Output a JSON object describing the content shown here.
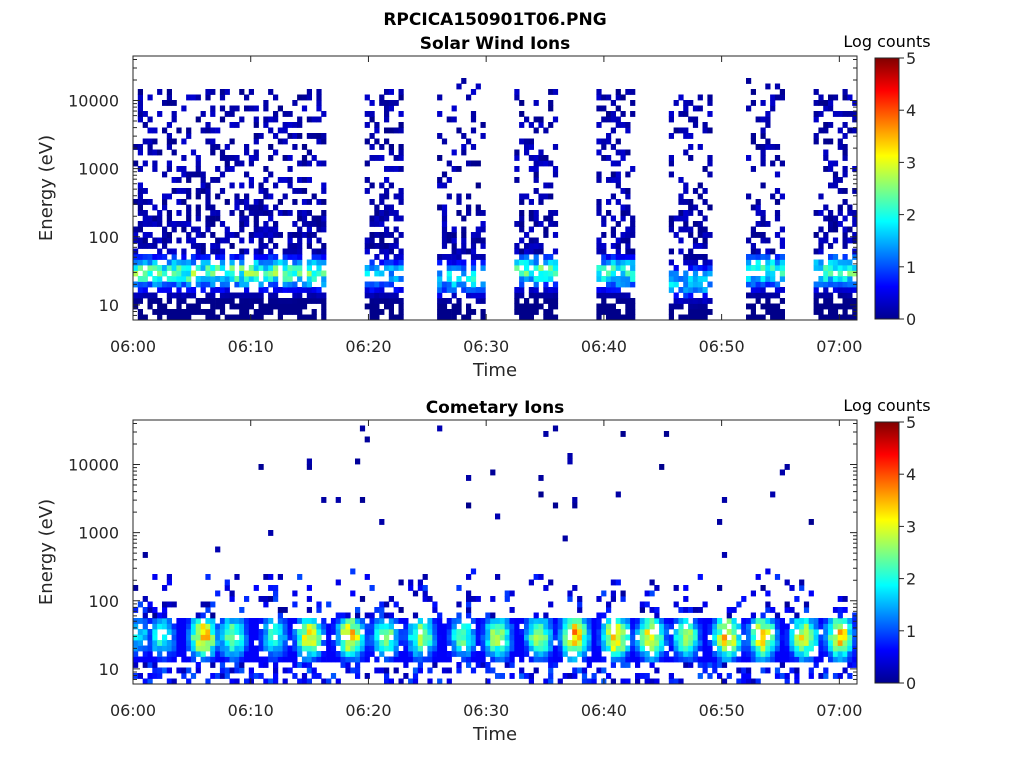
{
  "figure_title": "RPCICA150901T06.PNG",
  "chart_data": [
    {
      "type": "heatmap",
      "title": "Solar Wind Ions",
      "xlabel": "Time",
      "ylabel": "Energy (eV)",
      "x_ticks": [
        "06:00",
        "06:10",
        "06:20",
        "06:30",
        "06:40",
        "06:50",
        "07:00"
      ],
      "x_range_minutes": [
        0,
        61.5
      ],
      "y_scale": "log",
      "y_ticks": [
        10,
        100,
        1000,
        10000
      ],
      "y_tick_labels": [
        "10",
        "100",
        "1000",
        "10000"
      ],
      "y_range": [
        6,
        45000
      ],
      "colorbar_label": "Log counts",
      "colorbar_ticks": [
        "0",
        "1",
        "2",
        "3",
        "4",
        "5"
      ],
      "color_range": [
        0,
        5
      ],
      "colormap": "jet",
      "scan_bursts": [
        {
          "start_min": 0.2,
          "end_min": 16.2,
          "peak_energy_eV": 30,
          "peak_log_counts": 2.6,
          "noise_density": 0.32,
          "max_energy_eV": 15000
        },
        {
          "start_min": 19.5,
          "end_min": 23.0,
          "peak_energy_eV": 28,
          "peak_log_counts": 1.8,
          "noise_density": 0.38,
          "max_energy_eV": 15000
        },
        {
          "start_min": 26.0,
          "end_min": 30.0,
          "peak_energy_eV": 25,
          "peak_log_counts": 2.0,
          "noise_density": 0.22,
          "max_energy_eV": 20000
        },
        {
          "start_min": 32.5,
          "end_min": 36.0,
          "peak_energy_eV": 32,
          "peak_log_counts": 2.5,
          "noise_density": 0.3,
          "max_energy_eV": 15000
        },
        {
          "start_min": 39.5,
          "end_min": 42.5,
          "peak_energy_eV": 30,
          "peak_log_counts": 2.5,
          "noise_density": 0.38,
          "max_energy_eV": 15000
        },
        {
          "start_min": 45.5,
          "end_min": 49.0,
          "peak_energy_eV": 22,
          "peak_log_counts": 1.9,
          "noise_density": 0.28,
          "max_energy_eV": 15000
        },
        {
          "start_min": 52.0,
          "end_min": 55.5,
          "peak_energy_eV": 32,
          "peak_log_counts": 2.5,
          "noise_density": 0.28,
          "max_energy_eV": 20000
        },
        {
          "start_min": 58.0,
          "end_min": 61.5,
          "peak_energy_eV": 32,
          "peak_log_counts": 2.5,
          "noise_density": 0.32,
          "max_energy_eV": 15000
        }
      ]
    },
    {
      "type": "heatmap",
      "title": "Cometary Ions",
      "xlabel": "Time",
      "ylabel": "Energy (eV)",
      "x_ticks": [
        "06:00",
        "06:10",
        "06:20",
        "06:30",
        "06:40",
        "06:50",
        "07:00"
      ],
      "x_range_minutes": [
        0,
        61.5
      ],
      "y_scale": "log",
      "y_ticks": [
        10,
        100,
        1000,
        10000
      ],
      "y_tick_labels": [
        "10",
        "100",
        "1000",
        "10000"
      ],
      "y_range": [
        6,
        45000
      ],
      "colorbar_label": "Log counts",
      "colorbar_ticks": [
        "0",
        "1",
        "2",
        "3",
        "4",
        "5"
      ],
      "color_range": [
        0,
        5
      ],
      "colormap": "jet",
      "band": {
        "low_energy_eV": 12,
        "high_energy_eV": 60,
        "peak_energy_eV": 30
      },
      "peak_log_counts_by_minute": [
        {
          "minute": 0.5,
          "value": 1.8
        },
        {
          "minute": 2.5,
          "value": 2.2
        },
        {
          "minute": 6.0,
          "value": 3.5
        },
        {
          "minute": 8.5,
          "value": 2.6
        },
        {
          "minute": 12.0,
          "value": 2.2
        },
        {
          "minute": 15.0,
          "value": 3.2
        },
        {
          "minute": 18.5,
          "value": 3.4
        },
        {
          "minute": 21.5,
          "value": 2.6
        },
        {
          "minute": 24.5,
          "value": 2.8
        },
        {
          "minute": 28.0,
          "value": 2.4
        },
        {
          "minute": 31.0,
          "value": 2.9
        },
        {
          "minute": 34.5,
          "value": 2.8
        },
        {
          "minute": 37.5,
          "value": 3.6
        },
        {
          "minute": 41.0,
          "value": 3.6
        },
        {
          "minute": 44.0,
          "value": 3.4
        },
        {
          "minute": 47.0,
          "value": 2.7
        },
        {
          "minute": 50.5,
          "value": 3.5
        },
        {
          "minute": 53.5,
          "value": 3.4
        },
        {
          "minute": 57.0,
          "value": 3.2
        },
        {
          "minute": 60.0,
          "value": 3.4
        }
      ]
    }
  ]
}
